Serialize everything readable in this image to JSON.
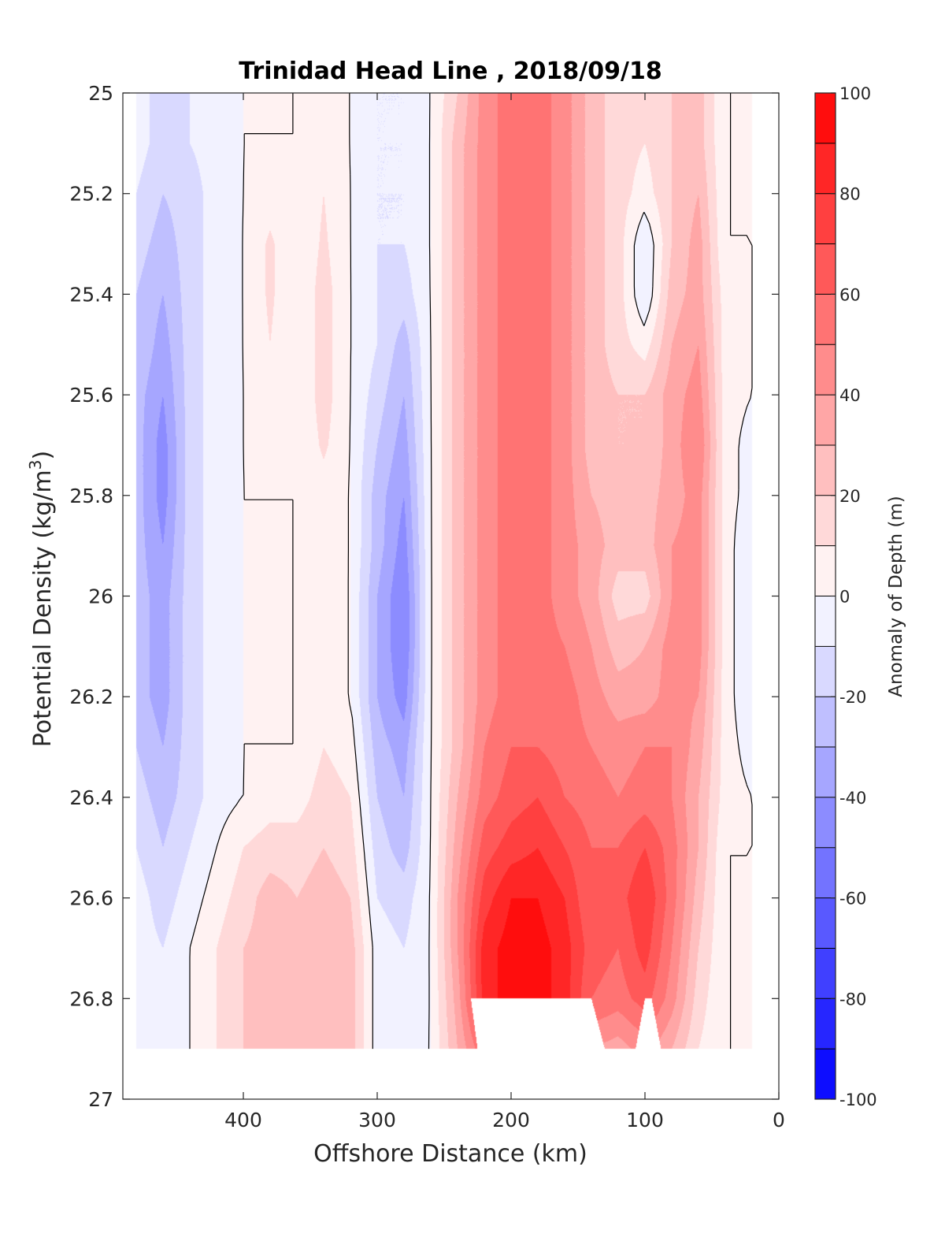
{
  "chart_data": {
    "type": "heatmap",
    "subtype": "filled-contour",
    "title": "Trinidad Head Line , 2018/09/18",
    "xlabel": "Offshore Distance (km)",
    "ylabel": "Potential Density (kg/m",
    "ylabel_sup": "3",
    "ylabel_end": ")",
    "colorbar_label": "Anomaly of Depth (m)",
    "x_reversed": true,
    "y_reversed": true,
    "xlim": [
      0,
      490
    ],
    "ylim": [
      25,
      27
    ],
    "x_ticks": [
      400,
      300,
      200,
      100,
      0
    ],
    "y_ticks": [
      25,
      25.2,
      25.4,
      25.6,
      25.8,
      26,
      26.2,
      26.4,
      26.6,
      26.8,
      27
    ],
    "y_tick_labels": [
      "25",
      "25.2",
      "25.4",
      "25.6",
      "25.8",
      "26",
      "26.2",
      "26.4",
      "26.6",
      "26.8",
      "27"
    ],
    "colorbar_ticks": [
      100,
      80,
      60,
      40,
      20,
      0,
      -20,
      -40,
      -60,
      -80,
      -100
    ],
    "colorbar_levels": [
      -100,
      -90,
      -80,
      -70,
      -60,
      -50,
      -40,
      -30,
      -20,
      -10,
      0,
      10,
      20,
      30,
      40,
      50,
      60,
      70,
      80,
      90,
      100
    ],
    "colormap": {
      "negative": "#0000ff",
      "zero": "#ffffff",
      "positive": "#ff0000"
    },
    "data_x_range": [
      20,
      480
    ],
    "data_y_range": [
      25,
      26.9
    ],
    "x": [
      480,
      460,
      440,
      420,
      400,
      380,
      360,
      340,
      320,
      300,
      280,
      260,
      240,
      220,
      200,
      180,
      160,
      140,
      120,
      100,
      80,
      60,
      40,
      20
    ],
    "y": [
      25.0,
      25.1,
      25.2,
      25.3,
      25.4,
      25.5,
      25.6,
      25.7,
      25.8,
      25.9,
      26.0,
      26.1,
      26.2,
      26.3,
      26.4,
      26.5,
      26.6,
      26.7,
      26.8,
      26.9
    ],
    "z": [
      [
        -5,
        -15,
        -10,
        -5,
        0,
        0,
        0,
        5,
        0,
        -10,
        -10,
        0,
        20,
        45,
        55,
        55,
        45,
        25,
        15,
        10,
        20,
        25,
        0,
        0
      ],
      [
        -5,
        -15,
        -10,
        -5,
        0,
        0,
        0,
        5,
        0,
        -10,
        -10,
        0,
        25,
        45,
        55,
        55,
        45,
        25,
        15,
        10,
        20,
        25,
        0,
        0
      ],
      [
        -10,
        -20,
        -15,
        -5,
        0,
        5,
        0,
        10,
        0,
        -10,
        -10,
        0,
        25,
        45,
        55,
        55,
        45,
        25,
        15,
        5,
        20,
        30,
        0,
        0
      ],
      [
        -15,
        -25,
        -15,
        -5,
        0,
        12,
        0,
        12,
        0,
        -10,
        -10,
        0,
        25,
        45,
        55,
        55,
        45,
        25,
        15,
        -10,
        20,
        35,
        0,
        0
      ],
      [
        -20,
        -30,
        -15,
        -5,
        0,
        12,
        0,
        15,
        0,
        -10,
        -15,
        0,
        25,
        45,
        55,
        55,
        45,
        25,
        15,
        -10,
        25,
        35,
        5,
        0
      ],
      [
        -20,
        -35,
        -15,
        -5,
        0,
        10,
        0,
        15,
        0,
        -10,
        -25,
        0,
        25,
        45,
        55,
        55,
        45,
        25,
        15,
        5,
        30,
        40,
        5,
        0
      ],
      [
        -25,
        -40,
        -15,
        -5,
        0,
        5,
        0,
        15,
        0,
        -15,
        -30,
        0,
        25,
        45,
        55,
        55,
        45,
        25,
        20,
        20,
        35,
        45,
        5,
        0
      ],
      [
        -25,
        -45,
        -15,
        -5,
        0,
        5,
        0,
        12,
        0,
        -20,
        -35,
        0,
        25,
        45,
        55,
        55,
        45,
        25,
        20,
        20,
        35,
        50,
        5,
        -5
      ],
      [
        -25,
        -45,
        -15,
        -5,
        0,
        0,
        0,
        5,
        0,
        -25,
        -40,
        0,
        25,
        45,
        55,
        55,
        45,
        30,
        25,
        25,
        35,
        45,
        5,
        -5
      ],
      [
        -25,
        -40,
        -15,
        -5,
        0,
        0,
        0,
        5,
        0,
        -25,
        -45,
        0,
        25,
        45,
        55,
        55,
        45,
        35,
        25,
        25,
        40,
        45,
        5,
        -10
      ],
      [
        -25,
        -35,
        -15,
        -5,
        0,
        0,
        0,
        5,
        0,
        -30,
        -50,
        0,
        25,
        45,
        55,
        55,
        45,
        35,
        15,
        15,
        40,
        45,
        5,
        -10
      ],
      [
        -25,
        -35,
        -15,
        -5,
        0,
        0,
        0,
        5,
        0,
        -30,
        -50,
        0,
        25,
        45,
        55,
        55,
        50,
        40,
        25,
        30,
        45,
        45,
        5,
        -10
      ],
      [
        -25,
        -35,
        -15,
        -5,
        0,
        0,
        0,
        5,
        0,
        -30,
        -45,
        0,
        25,
        45,
        55,
        55,
        55,
        45,
        35,
        35,
        45,
        40,
        5,
        -10
      ],
      [
        -20,
        -30,
        -15,
        -5,
        0,
        0,
        0,
        10,
        5,
        -25,
        -35,
        0,
        25,
        50,
        60,
        60,
        55,
        50,
        45,
        50,
        50,
        35,
        5,
        -5
      ],
      [
        -15,
        -25,
        -15,
        -5,
        0,
        5,
        5,
        15,
        10,
        -20,
        -30,
        0,
        30,
        55,
        65,
        70,
        60,
        55,
        50,
        55,
        50,
        30,
        5,
        0
      ],
      [
        -10,
        -20,
        -10,
        0,
        10,
        15,
        15,
        20,
        15,
        -15,
        -25,
        0,
        35,
        65,
        75,
        80,
        70,
        60,
        60,
        70,
        55,
        30,
        0,
        0
      ],
      [
        -5,
        -15,
        -5,
        5,
        15,
        25,
        20,
        25,
        20,
        -10,
        -15,
        0,
        40,
        75,
        90,
        90,
        80,
        60,
        65,
        80,
        55,
        25,
        0,
        0
      ],
      [
        -5,
        -10,
        0,
        10,
        20,
        25,
        25,
        25,
        25,
        -5,
        -10,
        0,
        40,
        85,
        95,
        95,
        85,
        65,
        60,
        75,
        50,
        20,
        0,
        0
      ],
      [
        -5,
        -10,
        0,
        10,
        20,
        25,
        25,
        25,
        25,
        -5,
        -10,
        0,
        35,
        85,
        95,
        95,
        85,
        60,
        55,
        65,
        45,
        15,
        0,
        0
      ],
      [
        -5,
        -10,
        0,
        10,
        20,
        25,
        25,
        25,
        25,
        -5,
        -5,
        0,
        30,
        60,
        70,
        70,
        60,
        40,
        35,
        45,
        30,
        10,
        0,
        0
      ]
    ],
    "masked_below": [
      {
        "x": 230,
        "y": 26.8
      },
      {
        "x": 225,
        "y": 26.9
      },
      {
        "x": 140,
        "y": 26.8
      },
      {
        "x": 130,
        "y": 26.9
      },
      {
        "x": 100,
        "y": 26.8
      }
    ],
    "zero_contours": true
  }
}
